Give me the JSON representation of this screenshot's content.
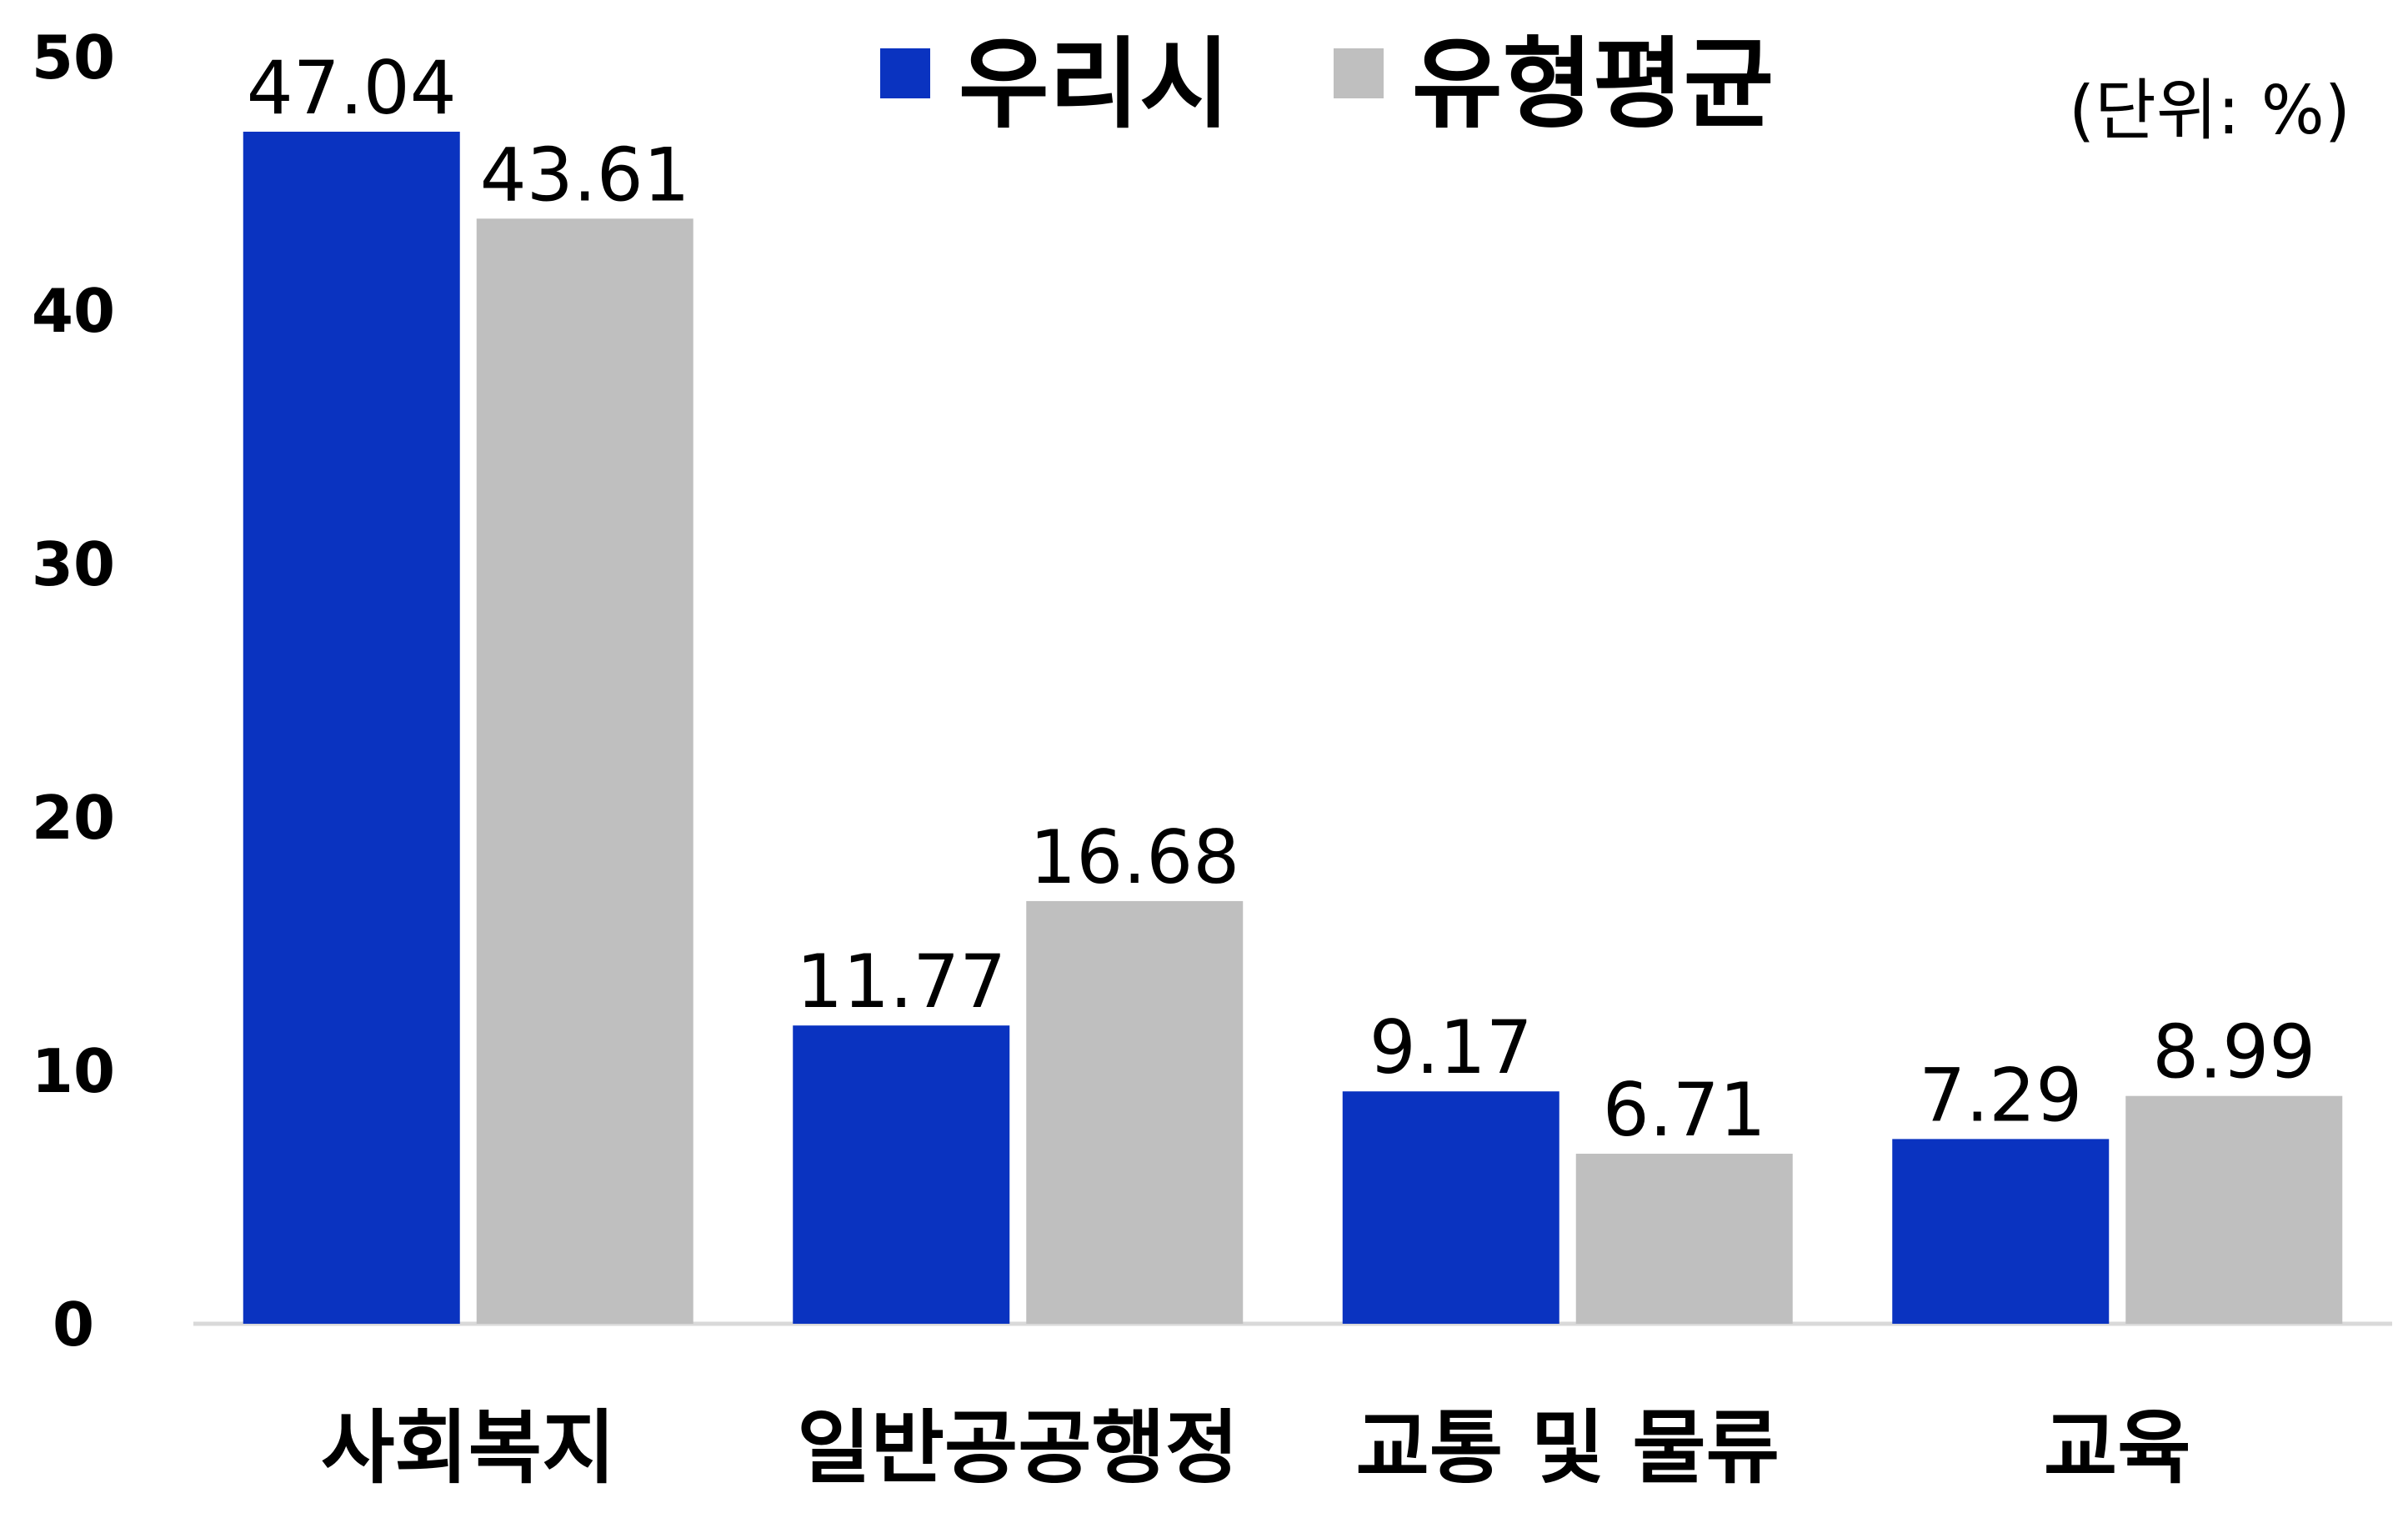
{
  "chart_data": {
    "type": "bar",
    "categories": [
      "사회복지",
      "일반공공행정",
      "교통 및 물류",
      "교육"
    ],
    "series": [
      {
        "name": "우리시",
        "color": "#0a33c0",
        "values": [
          47.04,
          11.77,
          9.17,
          7.29
        ],
        "labels": [
          "47.04",
          "11.77",
          "9.17",
          "7.29"
        ]
      },
      {
        "name": "유형평균",
        "color": "#bfbfbf",
        "values": [
          43.61,
          16.68,
          6.71,
          8.99
        ],
        "labels": [
          "43.61",
          "16.68",
          "6.71",
          "8.99"
        ]
      }
    ],
    "ylim": [
      0,
      50
    ],
    "yticks": [
      "0",
      "10",
      "20",
      "30",
      "40",
      "50"
    ],
    "unit_label": "(단위: %)",
    "legend_position": "top-center",
    "grid": false,
    "axis_color": "#d9d9d9"
  }
}
